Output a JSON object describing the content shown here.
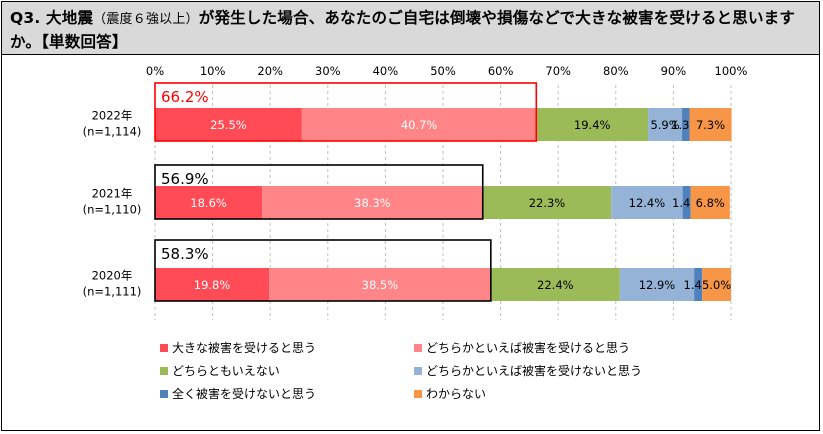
{
  "question": {
    "prefix": "Q3. 大地震",
    "paren": "（震度６強以上）",
    "rest": "が発生した場合、あなたのご自宅は倒壊や損傷などで大きな被害を受けると思いますか。【単数回答】"
  },
  "chart_data": {
    "type": "bar",
    "orientation": "horizontal",
    "stacked": true,
    "xlim": [
      0,
      100
    ],
    "x_ticks": [
      "0%",
      "10%",
      "20%",
      "30%",
      "40%",
      "50%",
      "60%",
      "70%",
      "80%",
      "90%",
      "100%"
    ],
    "grid": "vertical-dashed",
    "legend_position": "bottom",
    "categories": [
      {
        "label": "2022年",
        "n": "(n=1,114)",
        "highlight": "66.2%",
        "highlight_total": 66.2,
        "highlight_color": "#ff0000"
      },
      {
        "label": "2021年",
        "n": "(n=1,110)",
        "highlight": "56.9%",
        "highlight_total": 56.9,
        "highlight_color": "#000000"
      },
      {
        "label": "2020年",
        "n": "(n=1,111)",
        "highlight": "58.3%",
        "highlight_total": 58.3,
        "highlight_color": "#000000"
      }
    ],
    "series": [
      {
        "name": "大きな被害を受けると思う",
        "color": "#ff4b55",
        "label_color": "#ffffff",
        "values": [
          25.5,
          18.6,
          19.8
        ],
        "labels": [
          "25.5%",
          "18.6%",
          "19.8%"
        ]
      },
      {
        "name": "どちらかといえば被害を受けると思う",
        "color": "#ff8588",
        "label_color": "#ffffff",
        "values": [
          40.7,
          38.3,
          38.5
        ],
        "labels": [
          "40.7%",
          "38.3%",
          "38.5%"
        ]
      },
      {
        "name": "どちらともいえない",
        "color": "#9bbb59",
        "label_color": "#000000",
        "values": [
          19.4,
          22.3,
          22.4
        ],
        "labels": [
          "19.4%",
          "22.3%",
          "22.4%"
        ]
      },
      {
        "name": "どちらかといえば被害を受けないと思う",
        "color": "#95b3d7",
        "label_color": "#000000",
        "values": [
          5.9,
          12.4,
          12.9
        ],
        "labels": [
          "5.9%",
          "12.4%",
          "12.9%"
        ]
      },
      {
        "name": "全く被害を受けないと思う",
        "color": "#4f81bd",
        "label_color": "#000000",
        "values": [
          1.3,
          1.4,
          1.4
        ],
        "labels": [
          "1.3%",
          "1.4%",
          "1.4%"
        ]
      },
      {
        "name": "わからない",
        "color": "#f79646",
        "label_color": "#000000",
        "values": [
          7.3,
          6.8,
          5.0
        ],
        "labels": [
          "7.3%",
          "6.8%",
          "5.0%"
        ]
      }
    ]
  }
}
